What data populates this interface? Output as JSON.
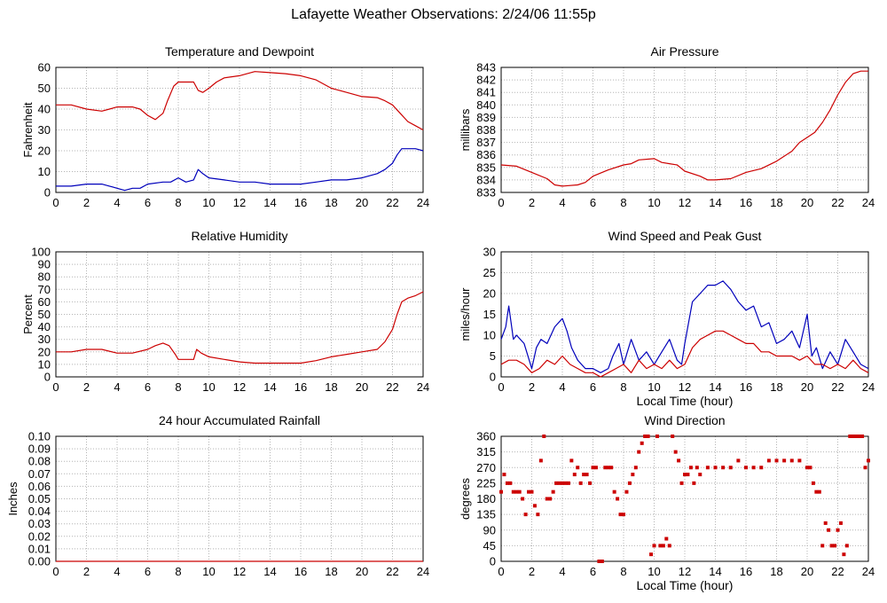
{
  "page": {
    "title": "Lafayette Weather Observations: 2/24/06 11:55p"
  },
  "chart_data": [
    {
      "id": "temp",
      "type": "line",
      "title": "Temperature and Dewpoint",
      "xlabel": "",
      "ylabel": "Fahrenheit",
      "xlim": [
        0,
        24
      ],
      "ylim": [
        0,
        60
      ],
      "xticks": [
        0,
        2,
        4,
        6,
        8,
        10,
        12,
        14,
        16,
        18,
        20,
        22,
        24
      ],
      "yticks": [
        0,
        10,
        20,
        30,
        40,
        50,
        60
      ],
      "grid": true,
      "series": [
        {
          "color": "#cc0000",
          "x": [
            0,
            0.5,
            1,
            2,
            3,
            3.5,
            4,
            5,
            5.5,
            6,
            6.5,
            7,
            7.3,
            7.7,
            8,
            8.5,
            9,
            9.3,
            9.6,
            10,
            10.5,
            11,
            12,
            12.5,
            13,
            14,
            15,
            16,
            17,
            18,
            19,
            20,
            21,
            21.5,
            22,
            22.5,
            23,
            23.5,
            24
          ],
          "y": [
            42,
            42,
            42,
            40,
            39,
            40,
            41,
            41,
            40,
            37,
            35,
            38,
            44,
            51,
            53,
            53,
            53,
            49,
            48,
            50,
            53,
            55,
            56,
            57,
            58,
            57.5,
            57,
            56,
            54,
            50,
            48,
            46,
            45.5,
            44,
            42,
            38,
            34,
            32,
            30
          ]
        },
        {
          "color": "#0000bb",
          "x": [
            0,
            1,
            2,
            3,
            3.5,
            4,
            4.5,
            5,
            5.5,
            6,
            7,
            7.5,
            8,
            8.5,
            9,
            9.3,
            9.6,
            10,
            11,
            12,
            13,
            14,
            15,
            16,
            17,
            18,
            19,
            20,
            21,
            21.5,
            22,
            22.3,
            22.6,
            23,
            23.5,
            24
          ],
          "y": [
            3,
            3,
            4,
            4,
            3,
            2,
            1,
            2,
            2,
            4,
            5,
            5,
            7,
            5,
            6,
            11,
            9,
            7,
            6,
            5,
            5,
            4,
            4,
            4,
            5,
            6,
            6,
            7,
            9,
            11,
            14,
            18,
            21,
            21,
            21,
            20
          ]
        }
      ]
    },
    {
      "id": "pressure",
      "type": "line",
      "title": "Air Pressure",
      "xlabel": "",
      "ylabel": "millibars",
      "xlim": [
        0,
        24
      ],
      "ylim": [
        833,
        843
      ],
      "xticks": [
        0,
        2,
        4,
        6,
        8,
        10,
        12,
        14,
        16,
        18,
        20,
        22,
        24
      ],
      "yticks": [
        833,
        834,
        835,
        836,
        837,
        838,
        839,
        840,
        841,
        842,
        843
      ],
      "grid": true,
      "series": [
        {
          "color": "#cc0000",
          "x": [
            0,
            1,
            2,
            3,
            3.5,
            4,
            5,
            5.5,
            6,
            7,
            8,
            8.5,
            9,
            10,
            10.5,
            11,
            11.5,
            12,
            13,
            13.5,
            14,
            15,
            16,
            17,
            18,
            19,
            19.5,
            20,
            20.5,
            21,
            21.5,
            22,
            22.5,
            23,
            23.5,
            24
          ],
          "y": [
            835.2,
            835.1,
            834.6,
            834.1,
            833.6,
            833.5,
            833.6,
            833.8,
            834.3,
            834.8,
            835.2,
            835.3,
            835.6,
            835.7,
            835.4,
            835.3,
            835.2,
            834.7,
            834.3,
            834.0,
            834.0,
            834.1,
            834.6,
            834.9,
            835.5,
            836.3,
            837.0,
            837.4,
            837.8,
            838.6,
            839.6,
            840.8,
            841.8,
            842.5,
            842.7,
            842.7
          ]
        }
      ]
    },
    {
      "id": "humidity",
      "type": "line",
      "title": "Relative Humidity",
      "xlabel": "",
      "ylabel": "Percent",
      "xlim": [
        0,
        24
      ],
      "ylim": [
        0,
        100
      ],
      "xticks": [
        0,
        2,
        4,
        6,
        8,
        10,
        12,
        14,
        16,
        18,
        20,
        22,
        24
      ],
      "yticks": [
        0,
        10,
        20,
        30,
        40,
        50,
        60,
        70,
        80,
        90,
        100
      ],
      "grid": true,
      "series": [
        {
          "color": "#cc0000",
          "x": [
            0,
            1,
            2,
            3,
            4,
            5,
            6,
            6.5,
            7,
            7.4,
            7.8,
            8,
            8.5,
            9,
            9.2,
            9.5,
            10,
            11,
            12,
            13,
            14,
            15,
            16,
            17,
            18,
            19,
            20,
            21,
            21.5,
            22,
            22.3,
            22.6,
            23,
            23.5,
            24
          ],
          "y": [
            20,
            20,
            22,
            22,
            19,
            19,
            22,
            25,
            27,
            25,
            18,
            14,
            14,
            14,
            22,
            19,
            16,
            14,
            12,
            11,
            11,
            11,
            11,
            13,
            16,
            18,
            20,
            22,
            28,
            38,
            50,
            60,
            63,
            65,
            68
          ]
        }
      ]
    },
    {
      "id": "wind",
      "type": "line",
      "title": "Wind Speed and Peak Gust",
      "xlabel": "Local Time (hour)",
      "ylabel": "miles/hour",
      "xlim": [
        0,
        24
      ],
      "ylim": [
        0,
        30
      ],
      "xticks": [
        0,
        2,
        4,
        6,
        8,
        10,
        12,
        14,
        16,
        18,
        20,
        22,
        24
      ],
      "yticks": [
        0,
        5,
        10,
        15,
        20,
        25,
        30
      ],
      "grid": true,
      "series": [
        {
          "color": "#0000bb",
          "x": [
            0,
            0.3,
            0.5,
            0.8,
            1,
            1.5,
            2,
            2.3,
            2.6,
            3,
            3.5,
            4,
            4.3,
            4.6,
            5,
            5.5,
            6,
            6.5,
            7,
            7.3,
            7.7,
            8,
            8.5,
            9,
            9.5,
            10,
            10.5,
            11,
            11.5,
            11.8,
            12,
            12.5,
            13,
            13.5,
            14,
            14.5,
            15,
            15.5,
            16,
            16.5,
            17,
            17.5,
            18,
            18.5,
            19,
            19.5,
            20,
            20.3,
            20.6,
            21,
            21.5,
            22,
            22.5,
            23,
            23.5,
            24
          ],
          "y": [
            9,
            12,
            17,
            9,
            10,
            8,
            2,
            7,
            9,
            8,
            12,
            14,
            11,
            7,
            4,
            2,
            2,
            1,
            2,
            5,
            8,
            3,
            9,
            4,
            6,
            3,
            6,
            9,
            4,
            3,
            8,
            18,
            20,
            22,
            22,
            23,
            21,
            18,
            16,
            17,
            12,
            13,
            8,
            9,
            11,
            7,
            15,
            5,
            7,
            2,
            6,
            3,
            9,
            6,
            3,
            2
          ]
        },
        {
          "color": "#cc0000",
          "x": [
            0,
            0.5,
            1,
            1.5,
            2,
            2.5,
            3,
            3.5,
            4,
            4.5,
            5,
            5.5,
            6,
            6.5,
            7,
            7.5,
            8,
            8.5,
            9,
            9.5,
            10,
            10.5,
            11,
            11.5,
            12,
            12.5,
            13,
            13.5,
            14,
            14.5,
            15,
            15.5,
            16,
            16.5,
            17,
            17.5,
            18,
            18.5,
            19,
            19.5,
            20,
            20.5,
            21,
            21.5,
            22,
            22.5,
            23,
            23.5,
            24
          ],
          "y": [
            3,
            4,
            4,
            3,
            1,
            2,
            4,
            3,
            5,
            3,
            2,
            1,
            1,
            0,
            1,
            2,
            3,
            1,
            4,
            2,
            3,
            2,
            4,
            2,
            3,
            7,
            9,
            10,
            11,
            11,
            10,
            9,
            8,
            8,
            6,
            6,
            5,
            5,
            5,
            4,
            5,
            3,
            3,
            2,
            3,
            2,
            4,
            2,
            1
          ]
        }
      ]
    },
    {
      "id": "rain",
      "type": "line",
      "title": "24 hour Accumulated Rainfall",
      "xlabel": "",
      "ylabel": "Inches",
      "xlim": [
        0,
        24
      ],
      "ylim": [
        0,
        0.1
      ],
      "xticks": [
        0,
        2,
        4,
        6,
        8,
        10,
        12,
        14,
        16,
        18,
        20,
        22,
        24
      ],
      "yticks": [
        "0.00",
        "0.01",
        "0.02",
        "0.03",
        "0.04",
        "0.05",
        "0.06",
        "0.07",
        "0.08",
        "0.09",
        "0.10"
      ],
      "grid": true,
      "series": [
        {
          "color": "#cc0000",
          "x": [
            0,
            24
          ],
          "y": [
            0,
            0
          ]
        }
      ]
    },
    {
      "id": "direction",
      "type": "scatter",
      "title": "Wind Direction",
      "xlabel": "Local Time (hour)",
      "ylabel": "degrees",
      "xlim": [
        0,
        24
      ],
      "ylim": [
        0,
        360
      ],
      "xticks": [
        0,
        2,
        4,
        6,
        8,
        10,
        12,
        14,
        16,
        18,
        20,
        22,
        24
      ],
      "yticks": [
        0,
        45,
        90,
        135,
        180,
        225,
        270,
        315,
        360
      ],
      "grid": true,
      "series": [
        {
          "color": "#cc0000",
          "x": [
            0,
            0.2,
            0.4,
            0.6,
            0.8,
            1,
            1.2,
            1.4,
            1.6,
            1.8,
            2,
            2.2,
            2.4,
            2.6,
            2.8,
            3,
            3.2,
            3.4,
            3.6,
            3.8,
            4,
            4.2,
            4.4,
            4.6,
            4.8,
            5,
            5.2,
            5.4,
            5.6,
            5.8,
            6,
            6.2,
            6.4,
            6.6,
            6.8,
            7,
            7.2,
            7.4,
            7.6,
            7.8,
            8,
            8.2,
            8.4,
            8.6,
            8.8,
            9,
            9.2,
            9.4,
            9.6,
            9.8,
            10,
            10.2,
            10.4,
            10.6,
            10.8,
            11,
            11.2,
            11.4,
            11.6,
            11.8,
            12,
            12.2,
            12.4,
            12.6,
            12.8,
            13,
            13.5,
            14,
            14.5,
            15,
            15.5,
            16,
            16.5,
            17,
            17.5,
            18,
            18.5,
            19,
            19.5,
            20,
            20.2,
            20.4,
            20.6,
            20.8,
            21,
            21.2,
            21.4,
            21.6,
            21.8,
            22,
            22.2,
            22.4,
            22.6,
            22.8,
            23,
            23.2,
            23.4,
            23.6,
            23.8,
            24
          ],
          "y": [
            200,
            250,
            225,
            225,
            200,
            200,
            200,
            180,
            135,
            200,
            200,
            160,
            135,
            290,
            360,
            180,
            180,
            200,
            225,
            225,
            225,
            225,
            225,
            290,
            250,
            270,
            225,
            250,
            250,
            225,
            270,
            270,
            0,
            0,
            270,
            270,
            270,
            200,
            180,
            135,
            135,
            200,
            225,
            250,
            270,
            315,
            340,
            360,
            360,
            20,
            45,
            360,
            45,
            45,
            65,
            45,
            360,
            315,
            290,
            225,
            250,
            250,
            270,
            225,
            270,
            250,
            270,
            270,
            270,
            270,
            290,
            270,
            270,
            270,
            290,
            290,
            290,
            290,
            290,
            270,
            270,
            225,
            200,
            200,
            45,
            110,
            90,
            45,
            45,
            90,
            110,
            20,
            45,
            360,
            360,
            360,
            360,
            360,
            270,
            290
          ]
        }
      ]
    }
  ]
}
